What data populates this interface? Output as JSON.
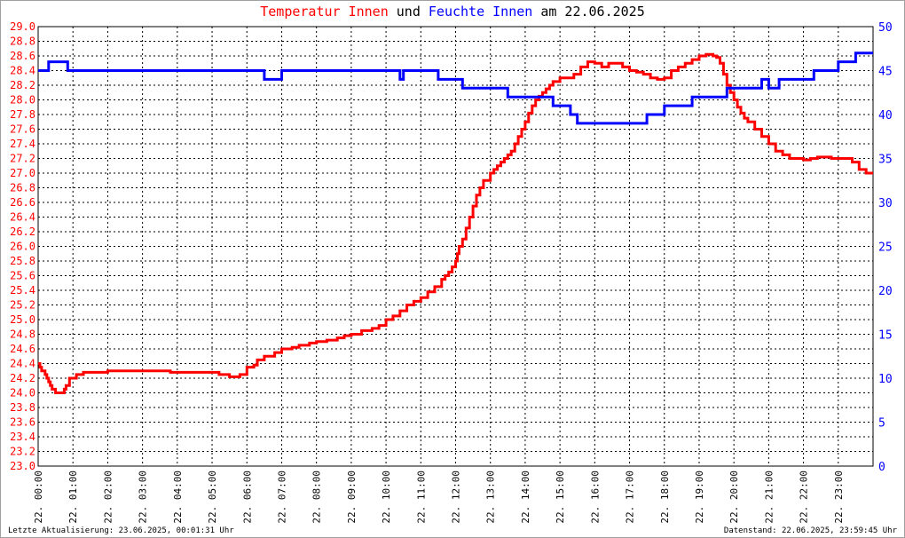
{
  "title": {
    "part1": "Temperatur Innen",
    "part2": " und ",
    "part3": "Feuchte Innen",
    "part4": " am 22.06.2025"
  },
  "colors": {
    "temperature": "#ff0000",
    "humidity": "#0000ff",
    "grid": "#000000",
    "text": "#000000"
  },
  "footer": {
    "left": "Letzte Aktualisierung: 23.06.2025, 00:01:31 Uhr",
    "right": "Datenstand: 22.06.2025, 23:59:45 Uhr"
  },
  "chart_data": {
    "type": "line",
    "title": "Temperatur Innen und Feuchte Innen am 22.06.2025",
    "xlabel": "",
    "ylabel_left": "",
    "ylabel_right": "",
    "xlim": [
      0,
      24
    ],
    "ylim_left": [
      23.0,
      29.0
    ],
    "ylim_right": [
      0,
      50
    ],
    "y_ticks_left": [
      "23.0",
      "23.2",
      "23.4",
      "23.6",
      "23.8",
      "24.0",
      "24.2",
      "24.4",
      "24.6",
      "24.8",
      "25.0",
      "25.2",
      "25.4",
      "25.6",
      "25.8",
      "26.0",
      "26.2",
      "26.4",
      "26.6",
      "26.8",
      "27.0",
      "27.2",
      "27.4",
      "27.6",
      "27.8",
      "28.0",
      "28.2",
      "28.4",
      "28.6",
      "28.8",
      "29.0"
    ],
    "y_ticks_right": [
      "0",
      "5",
      "10",
      "15",
      "20",
      "25",
      "30",
      "35",
      "40",
      "45",
      "50"
    ],
    "x_ticks": [
      "22. 00:00",
      "22. 01:00",
      "22. 02:00",
      "22. 03:00",
      "22. 04:00",
      "22. 05:00",
      "22. 06:00",
      "22. 07:00",
      "22. 08:00",
      "22. 09:00",
      "22. 10:00",
      "22. 11:00",
      "22. 12:00",
      "22. 13:00",
      "22. 14:00",
      "22. 15:00",
      "22. 16:00",
      "22. 17:00",
      "22. 18:00",
      "22. 19:00",
      "22. 20:00",
      "22. 21:00",
      "22. 22:00",
      "22. 23:00"
    ],
    "grid": true,
    "series": [
      {
        "name": "Temperatur Innen",
        "axis": "left",
        "x": [
          0,
          0.05,
          0.1,
          0.2,
          0.25,
          0.3,
          0.35,
          0.4,
          0.5,
          0.6,
          0.7,
          0.75,
          0.8,
          0.9,
          1.0,
          1.1,
          1.2,
          1.3,
          1.5,
          2.0,
          2.2,
          2.5,
          3.0,
          3.5,
          3.8,
          4.0,
          4.5,
          5.0,
          5.2,
          5.4,
          5.5,
          5.6,
          5.8,
          6.0,
          6.2,
          6.3,
          6.5,
          6.8,
          7.0,
          7.3,
          7.5,
          7.8,
          8.0,
          8.3,
          8.6,
          8.8,
          9.0,
          9.3,
          9.6,
          9.8,
          10.0,
          10.2,
          10.4,
          10.6,
          10.8,
          11.0,
          11.2,
          11.4,
          11.6,
          11.7,
          11.8,
          11.9,
          12.0,
          12.05,
          12.1,
          12.2,
          12.3,
          12.4,
          12.5,
          12.6,
          12.7,
          12.8,
          13.0,
          13.1,
          13.2,
          13.3,
          13.4,
          13.5,
          13.6,
          13.7,
          13.8,
          13.9,
          14.0,
          14.1,
          14.2,
          14.3,
          14.4,
          14.5,
          14.6,
          14.7,
          14.8,
          15.0,
          15.2,
          15.4,
          15.6,
          15.8,
          16.0,
          16.2,
          16.4,
          16.6,
          16.8,
          17.0,
          17.2,
          17.4,
          17.6,
          17.8,
          18.0,
          18.2,
          18.4,
          18.6,
          18.8,
          19.0,
          19.2,
          19.4,
          19.5,
          19.6,
          19.7,
          19.8,
          19.9,
          20.0,
          20.1,
          20.2,
          20.3,
          20.4,
          20.6,
          20.8,
          21.0,
          21.2,
          21.4,
          21.6,
          21.8,
          22.0,
          22.2,
          22.4,
          22.6,
          22.8,
          23.0,
          23.2,
          23.4,
          23.6,
          23.8,
          24.0
        ],
        "values": [
          24.4,
          24.35,
          24.3,
          24.25,
          24.2,
          24.15,
          24.1,
          24.05,
          24.0,
          24.0,
          24.0,
          24.05,
          24.1,
          24.2,
          24.2,
          24.25,
          24.25,
          24.28,
          24.28,
          24.3,
          24.3,
          24.3,
          24.3,
          24.3,
          24.28,
          24.28,
          24.28,
          24.28,
          24.25,
          24.25,
          24.22,
          24.22,
          24.25,
          24.35,
          24.38,
          24.45,
          24.5,
          24.55,
          24.6,
          24.62,
          24.65,
          24.68,
          24.7,
          24.72,
          24.75,
          24.78,
          24.8,
          24.85,
          24.88,
          24.92,
          25.0,
          25.05,
          25.12,
          25.2,
          25.25,
          25.3,
          25.38,
          25.45,
          25.55,
          25.6,
          25.65,
          25.72,
          25.8,
          25.9,
          26.0,
          26.1,
          26.25,
          26.4,
          26.55,
          26.7,
          26.8,
          26.9,
          27.0,
          27.05,
          27.1,
          27.15,
          27.2,
          27.25,
          27.3,
          27.4,
          27.5,
          27.6,
          27.7,
          27.82,
          27.92,
          28.0,
          28.05,
          28.1,
          28.15,
          28.2,
          28.25,
          28.3,
          28.3,
          28.35,
          28.45,
          28.52,
          28.5,
          28.45,
          28.5,
          28.5,
          28.45,
          28.4,
          28.38,
          28.35,
          28.3,
          28.28,
          28.3,
          28.4,
          28.45,
          28.5,
          28.55,
          28.6,
          28.62,
          28.6,
          28.58,
          28.5,
          28.35,
          28.2,
          28.1,
          28.0,
          27.9,
          27.82,
          27.75,
          27.7,
          27.6,
          27.5,
          27.4,
          27.3,
          27.25,
          27.2,
          27.2,
          27.18,
          27.2,
          27.22,
          27.22,
          27.2,
          27.2,
          27.2,
          27.15,
          27.05,
          27.0,
          27.0
        ],
        "color": "#ff0000"
      },
      {
        "name": "Feuchte Innen",
        "axis": "right",
        "x": [
          0,
          0.2,
          0.3,
          0.5,
          0.8,
          0.85,
          1.0,
          2.0,
          3.0,
          4.0,
          5.0,
          6.0,
          6.5,
          7.0,
          7.5,
          8.0,
          8.5,
          9.0,
          9.5,
          10.0,
          10.4,
          10.5,
          11.0,
          11.5,
          12.0,
          12.2,
          12.5,
          13.0,
          13.5,
          13.7,
          14.0,
          14.3,
          14.5,
          14.8,
          15.0,
          15.3,
          15.5,
          16.0,
          16.3,
          16.5,
          17.0,
          17.5,
          17.8,
          18.0,
          18.5,
          18.8,
          19.0,
          19.3,
          19.5,
          19.8,
          20.0,
          20.5,
          20.8,
          21.0,
          21.3,
          21.5,
          22.0,
          22.3,
          22.5,
          23.0,
          23.3,
          23.5,
          23.8,
          24.0
        ],
        "values": [
          45,
          45,
          46,
          46,
          46,
          45,
          45,
          45,
          45,
          45,
          45,
          45,
          44,
          45,
          45,
          45,
          45,
          45,
          45,
          45,
          44,
          45,
          45,
          44,
          44,
          43,
          43,
          43,
          42,
          42,
          42,
          42,
          42,
          41,
          41,
          40,
          39,
          39,
          39,
          39,
          39,
          40,
          40,
          41,
          41,
          42,
          42,
          42,
          42,
          43,
          43,
          43,
          44,
          43,
          44,
          44,
          44,
          45,
          45,
          46,
          46,
          47,
          47,
          47
        ],
        "color": "#0000ff"
      }
    ]
  }
}
